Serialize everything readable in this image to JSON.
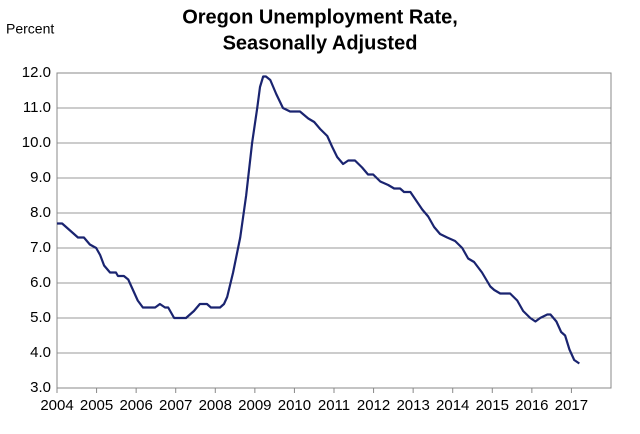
{
  "chart_data": {
    "type": "line",
    "title": [
      "Oregon Unemployment Rate,",
      "Seasonally Adjusted"
    ],
    "y_label": "Percent",
    "x": [
      2004.0,
      2004.13,
      2004.33,
      2004.53,
      2004.68,
      2004.83,
      2004.99,
      2005.09,
      2005.19,
      2005.34,
      2005.49,
      2005.54,
      2005.69,
      2005.8,
      2005.92,
      2006.04,
      2006.17,
      2006.48,
      2006.6,
      2006.73,
      2006.81,
      2006.96,
      2007.26,
      2007.46,
      2007.61,
      2007.79,
      2007.89,
      2008.12,
      2008.22,
      2008.3,
      2008.45,
      2008.63,
      2008.78,
      2008.93,
      2009.06,
      2009.13,
      2009.21,
      2009.28,
      2009.39,
      2009.54,
      2009.71,
      2009.89,
      2010.14,
      2010.35,
      2010.5,
      2010.65,
      2010.83,
      2010.95,
      2011.08,
      2011.23,
      2011.36,
      2011.53,
      2011.71,
      2011.86,
      2011.99,
      2012.17,
      2012.37,
      2012.52,
      2012.67,
      2012.77,
      2012.93,
      2013.05,
      2013.23,
      2013.38,
      2013.53,
      2013.68,
      2013.86,
      2014.06,
      2014.24,
      2014.39,
      2014.54,
      2014.74,
      2014.95,
      2015.05,
      2015.2,
      2015.45,
      2015.63,
      2015.78,
      2015.96,
      2016.09,
      2016.21,
      2016.39,
      2016.47,
      2016.62,
      2016.74,
      2016.84,
      2016.95,
      2017.07,
      2017.2
    ],
    "series": [
      {
        "name": "Oregon",
        "color": "#1a2470",
        "values": [
          7.7,
          7.7,
          7.5,
          7.3,
          7.3,
          7.1,
          7.0,
          6.8,
          6.5,
          6.3,
          6.3,
          6.2,
          6.2,
          6.1,
          5.8,
          5.5,
          5.3,
          5.3,
          5.4,
          5.3,
          5.3,
          5.0,
          5.0,
          5.2,
          5.4,
          5.4,
          5.3,
          5.3,
          5.4,
          5.6,
          6.3,
          7.3,
          8.5,
          10.0,
          11.0,
          11.6,
          11.9,
          11.9,
          11.8,
          11.4,
          11.0,
          10.9,
          10.9,
          10.7,
          10.6,
          10.4,
          10.2,
          9.9,
          9.6,
          9.4,
          9.5,
          9.5,
          9.3,
          9.1,
          9.1,
          8.9,
          8.8,
          8.7,
          8.7,
          8.6,
          8.6,
          8.4,
          8.1,
          7.9,
          7.6,
          7.4,
          7.3,
          7.2,
          7.0,
          6.7,
          6.6,
          6.3,
          5.9,
          5.8,
          5.7,
          5.7,
          5.5,
          5.2,
          5.0,
          4.9,
          5.0,
          5.1,
          5.1,
          4.9,
          4.6,
          4.5,
          4.1,
          3.8,
          3.7
        ]
      }
    ],
    "xlim": [
      2004,
      2018
    ],
    "xticks": [
      2004,
      2005,
      2006,
      2007,
      2008,
      2009,
      2010,
      2011,
      2012,
      2013,
      2014,
      2015,
      2016,
      2017
    ],
    "ylim": [
      3,
      12
    ],
    "yticks": [
      {
        "value": 3,
        "label": "3.0"
      },
      {
        "value": 4,
        "label": "4.0"
      },
      {
        "value": 5,
        "label": "5.0"
      },
      {
        "value": 6,
        "label": "6.0"
      },
      {
        "value": 7,
        "label": "7.0"
      },
      {
        "value": 8,
        "label": "8.0"
      },
      {
        "value": 9,
        "label": "9.0"
      },
      {
        "value": 10,
        "label": "10.0"
      },
      {
        "value": 11,
        "label": "11.0"
      },
      {
        "value": 12,
        "label": "12.0"
      }
    ],
    "grid": true
  }
}
